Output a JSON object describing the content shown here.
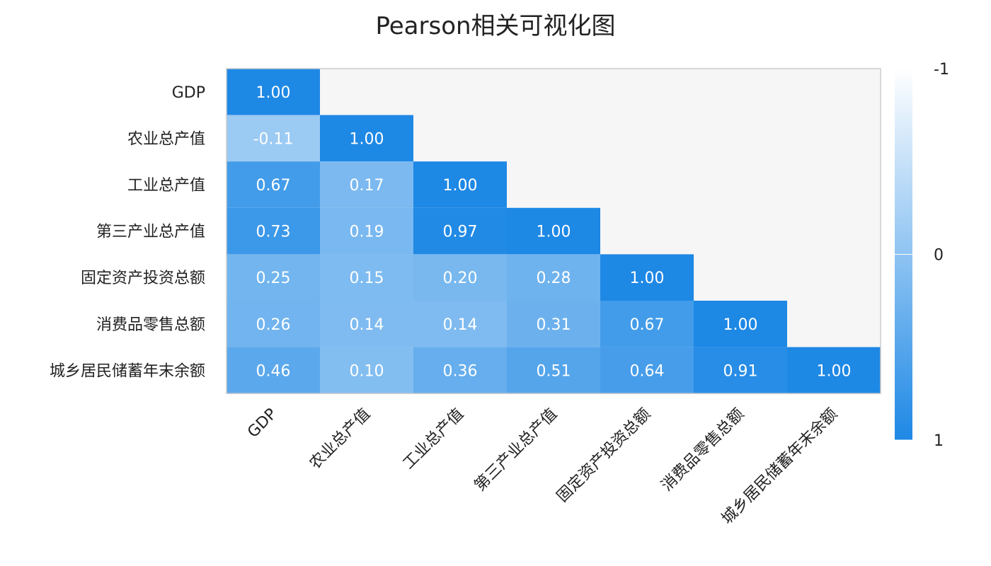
{
  "chart_data": {
    "type": "heatmap",
    "title": "Pearson相关可视化图",
    "variables": [
      "GDP",
      "农业总产值",
      "工业总产值",
      "第三产业总产值",
      "固定资产投资总额",
      "消费品零售总额",
      "城乡居民储蓄年末余额"
    ],
    "matrix": [
      [
        "1.00"
      ],
      [
        "-0.11",
        "1.00"
      ],
      [
        "0.67",
        "0.17",
        "1.00"
      ],
      [
        "0.73",
        "0.19",
        "0.97",
        "1.00"
      ],
      [
        "0.25",
        "0.15",
        "0.20",
        "0.28",
        "1.00"
      ],
      [
        "0.26",
        "0.14",
        "0.14",
        "0.31",
        "0.67",
        "1.00"
      ],
      [
        "0.46",
        "0.10",
        "0.36",
        "0.51",
        "0.64",
        "0.91",
        "1.00"
      ]
    ],
    "lower_triangle_only": true,
    "colorbar": {
      "min": -1,
      "max": 1,
      "tick_labels": [
        "-1",
        "0",
        "1"
      ],
      "min_color": "#ffffff",
      "max_color": "#1e88e5",
      "orientation": "top-to-bottom"
    },
    "empty_background": "#f6f6f6",
    "xlabel": "",
    "ylabel": ""
  }
}
